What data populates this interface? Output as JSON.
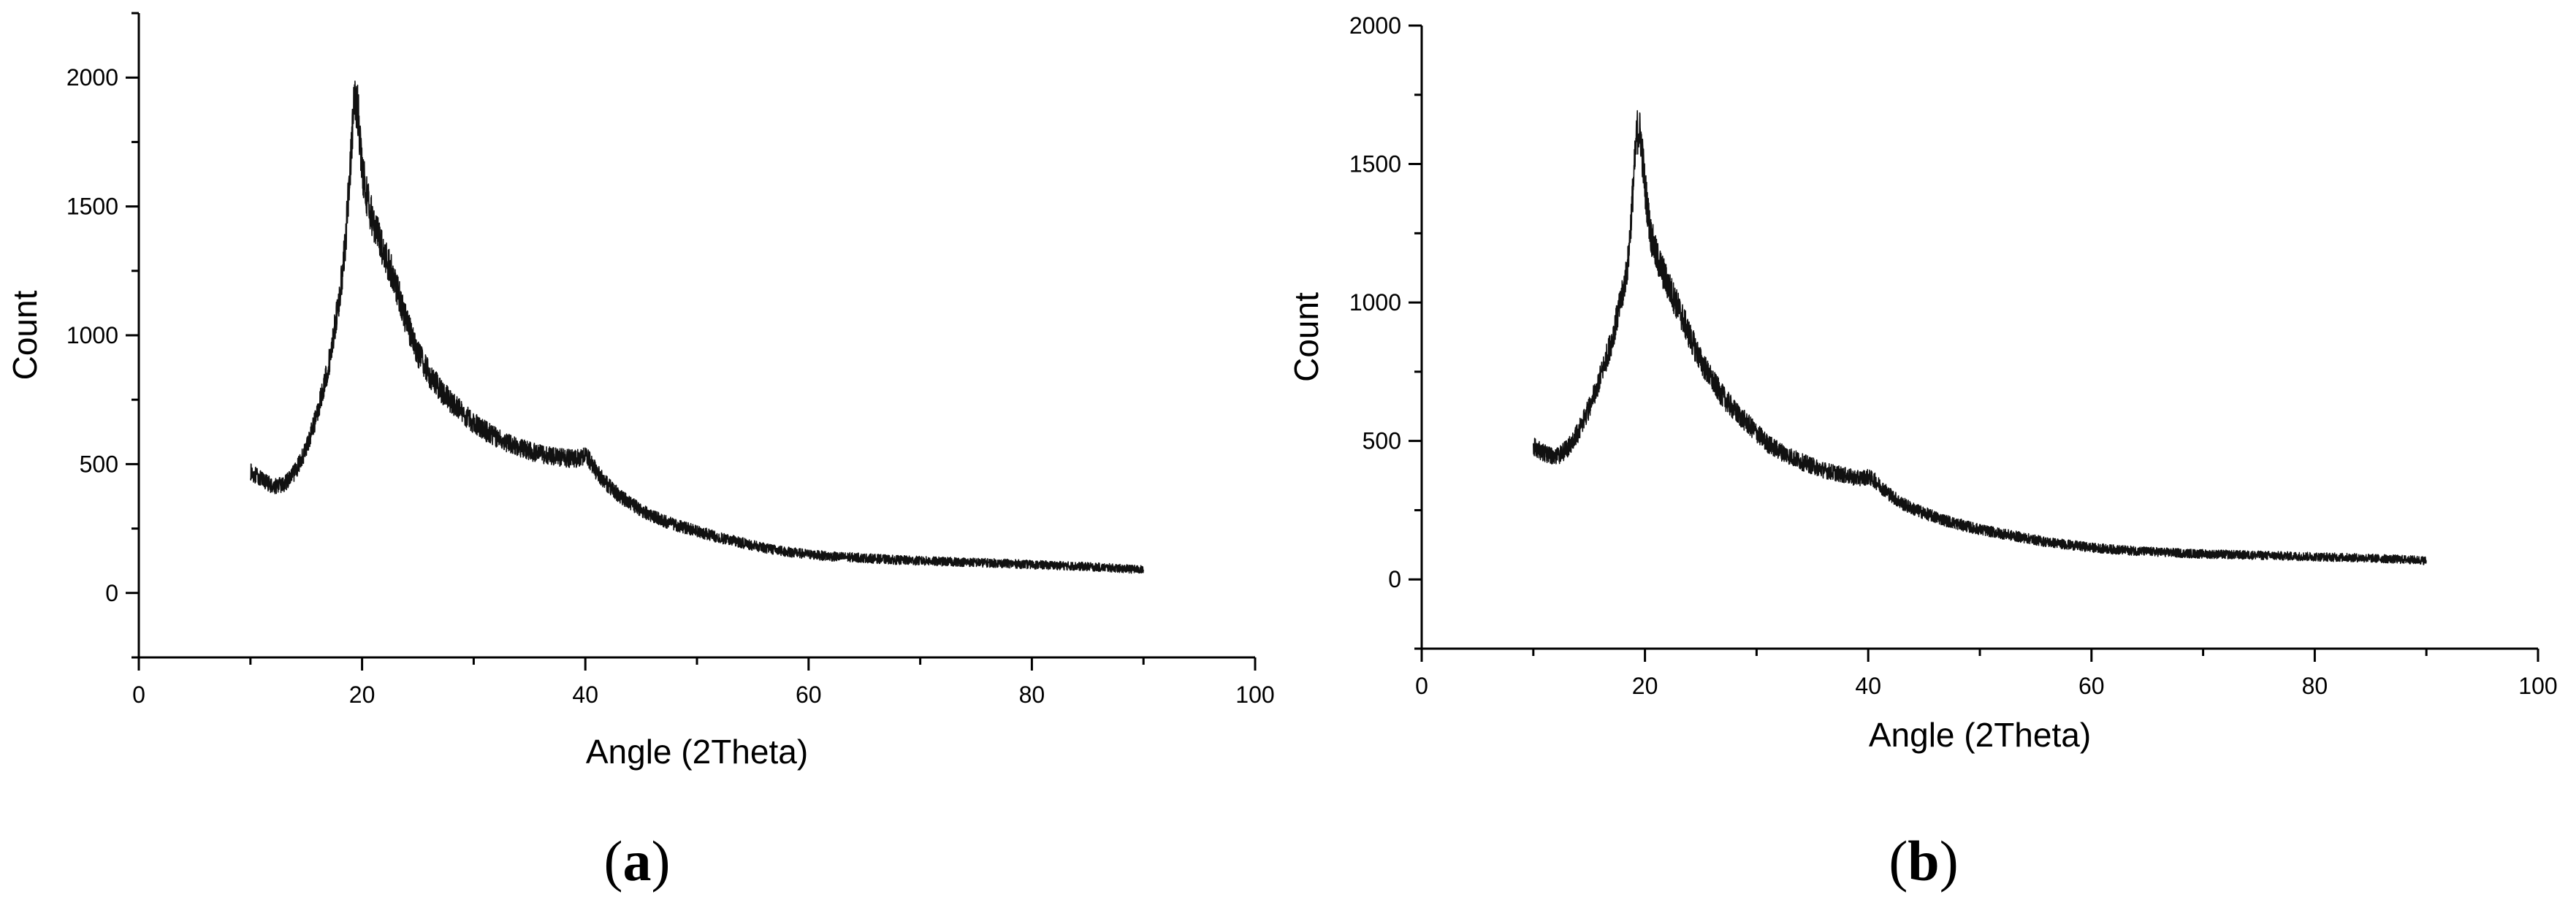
{
  "chart_data": [
    {
      "type": "line",
      "panel": "a",
      "xlabel": "Angle (2Theta)",
      "ylabel": "Count",
      "xlim": [
        0,
        100
      ],
      "ylim": [
        -250,
        2250
      ],
      "xticks": [
        0,
        20,
        40,
        60,
        80,
        100
      ],
      "yticks": [
        0,
        500,
        1000,
        1500,
        2000
      ],
      "grid": false,
      "series": [
        {
          "x": [
            10,
            11,
            12,
            13,
            14,
            15,
            16,
            17,
            18,
            18.5,
            19,
            19.3,
            19.6,
            20,
            20.5,
            21,
            21.5,
            22,
            23,
            24,
            25,
            26,
            27,
            28,
            29,
            30,
            31,
            32,
            33,
            34,
            35,
            36,
            37,
            38,
            39,
            40,
            40.5,
            41,
            42,
            43,
            44,
            45,
            46,
            47,
            48,
            50,
            52,
            54,
            56,
            58,
            60,
            62,
            64,
            66,
            68,
            70,
            72,
            74,
            76,
            78,
            80,
            82,
            84,
            86,
            88,
            90
          ],
          "y": [
            470,
            440,
            415,
            420,
            470,
            560,
            700,
            880,
            1150,
            1350,
            1700,
            1900,
            1890,
            1650,
            1520,
            1440,
            1380,
            1320,
            1200,
            1050,
            930,
            850,
            790,
            740,
            700,
            660,
            630,
            605,
            585,
            565,
            550,
            540,
            530,
            525,
            520,
            535,
            510,
            470,
            420,
            380,
            350,
            320,
            300,
            280,
            265,
            240,
            215,
            195,
            175,
            160,
            150,
            142,
            138,
            133,
            128,
            125,
            122,
            120,
            117,
            114,
            110,
            107,
            104,
            100,
            95,
            90
          ]
        }
      ]
    },
    {
      "type": "line",
      "panel": "b",
      "xlabel": "Angle (2Theta)",
      "ylabel": "Count",
      "xlim": [
        0,
        100
      ],
      "ylim": [
        -250,
        2000
      ],
      "xticks": [
        0,
        20,
        40,
        60,
        80,
        100
      ],
      "yticks": [
        0,
        500,
        1000,
        1500,
        2000
      ],
      "grid": false,
      "series": [
        {
          "x": [
            10,
            11,
            12,
            13,
            14,
            15,
            16,
            17,
            18,
            18.5,
            19,
            19.3,
            19.6,
            20,
            20.5,
            21,
            21.5,
            22,
            23,
            24,
            25,
            26,
            27,
            28,
            29,
            30,
            31,
            32,
            33,
            34,
            35,
            36,
            37,
            38,
            39,
            40,
            40.5,
            41,
            42,
            43,
            44,
            45,
            46,
            47,
            48,
            50,
            52,
            54,
            56,
            58,
            60,
            62,
            64,
            66,
            68,
            70,
            72,
            74,
            76,
            78,
            80,
            82,
            84,
            86,
            88,
            90
          ],
          "y": [
            480,
            455,
            440,
            470,
            530,
            620,
            730,
            860,
            1030,
            1150,
            1450,
            1620,
            1610,
            1420,
            1250,
            1170,
            1120,
            1070,
            980,
            880,
            790,
            720,
            660,
            610,
            570,
            530,
            490,
            465,
            445,
            425,
            410,
            395,
            385,
            375,
            365,
            370,
            360,
            340,
            305,
            275,
            255,
            240,
            225,
            212,
            200,
            180,
            165,
            150,
            135,
            125,
            115,
            108,
            103,
            99,
            95,
            92,
            90,
            88,
            86,
            84,
            82,
            80,
            78,
            75,
            72,
            68
          ]
        }
      ]
    }
  ]
}
